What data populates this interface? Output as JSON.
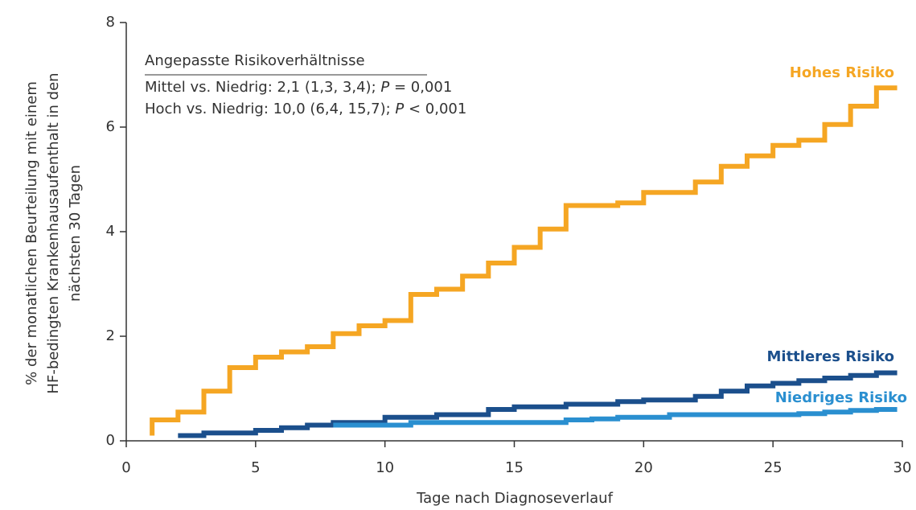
{
  "chart_data": {
    "type": "step",
    "xlabel": "Tage nach Diagnoseverlauf",
    "ylabel": [
      "% der monatlichen Beurteilung mit einem",
      "HF-bedingten Krankenhausaufenthalt in den",
      "nächsten 30 Tagen"
    ],
    "annotation": {
      "title": "Angepasste Risikoverhältnisse",
      "lines": [
        [
          "Mittel vs. Niedrig: 2,1 (1,3, 3,4); ",
          "P",
          " = 0,001"
        ],
        [
          "Hoch vs. Niedrig: 10,0 (6,4, 15,7); ",
          "P",
          " < 0,001"
        ]
      ]
    },
    "xlim": [
      0,
      30
    ],
    "xticks": [
      0,
      5,
      10,
      15,
      20,
      25,
      30
    ],
    "ylim": [
      0,
      8
    ],
    "yticks": [
      0,
      2,
      4,
      6,
      8
    ],
    "series": [
      {
        "name": "Hohes Risiko",
        "color": "#f5a623",
        "x": [
          1,
          1,
          2,
          3,
          4,
          5,
          6,
          7,
          8,
          9,
          10,
          11,
          12,
          13,
          14,
          15,
          16,
          17,
          19,
          20,
          22,
          23,
          24,
          25,
          26,
          27,
          28,
          29,
          29.8
        ],
        "values": [
          0.1,
          0.4,
          0.55,
          0.95,
          1.4,
          1.6,
          1.7,
          1.8,
          2.05,
          2.2,
          2.3,
          2.8,
          2.9,
          3.15,
          3.4,
          3.7,
          4.05,
          4.5,
          4.55,
          4.75,
          4.95,
          5.25,
          5.45,
          5.65,
          5.75,
          6.05,
          6.4,
          6.75,
          6.75
        ]
      },
      {
        "name": "Mittleres Risiko",
        "color": "#1b4f8c",
        "x": [
          2,
          3,
          5,
          6,
          7,
          8,
          10,
          12,
          14,
          15,
          17,
          19,
          20,
          22,
          23,
          24,
          25,
          26,
          27,
          28,
          29,
          29.8
        ],
        "values": [
          0.1,
          0.15,
          0.2,
          0.25,
          0.3,
          0.35,
          0.45,
          0.5,
          0.6,
          0.65,
          0.7,
          0.75,
          0.78,
          0.85,
          0.95,
          1.05,
          1.1,
          1.15,
          1.2,
          1.25,
          1.3,
          1.3
        ]
      },
      {
        "name": "Niedriges Risiko",
        "color": "#2a8fd0",
        "x": [
          8,
          11,
          17,
          18,
          19,
          21,
          26,
          27,
          28,
          29,
          29.8
        ],
        "values": [
          0.3,
          0.35,
          0.4,
          0.42,
          0.45,
          0.5,
          0.52,
          0.55,
          0.58,
          0.6,
          0.6
        ]
      }
    ]
  }
}
